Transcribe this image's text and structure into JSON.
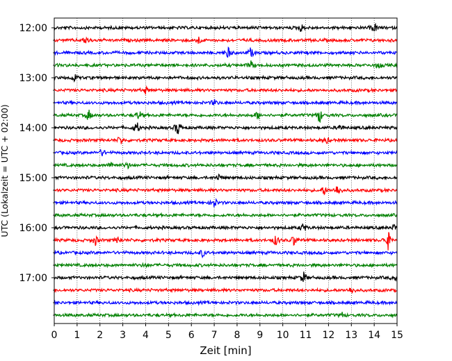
{
  "chart_data": {
    "type": "line",
    "title": "",
    "xlabel": "Zeit  [min]",
    "ylabel": "UTC (Lokalzeit = UTC + 02:00)",
    "x_range": [
      0,
      15
    ],
    "x_ticks": [
      "0",
      "1",
      "2",
      "3",
      "4",
      "5",
      "6",
      "7",
      "8",
      "9",
      "10",
      "11",
      "12",
      "13",
      "14",
      "15"
    ],
    "y_ticks": [
      "12:00",
      "13:00",
      "14:00",
      "15:00",
      "16:00",
      "17:00"
    ],
    "grid": {
      "vertical_dotted": true
    },
    "trace_colors": [
      "#000000",
      "#ff0000",
      "#0000ff",
      "#008000"
    ],
    "traces": [
      {
        "start": "12:00",
        "events": [
          [
            10.8,
            0.5
          ],
          [
            14.0,
            0.6
          ]
        ]
      },
      {
        "start": "12:15",
        "events": [
          [
            1.4,
            0.5
          ],
          [
            6.3,
            0.5
          ]
        ]
      },
      {
        "start": "12:30",
        "events": [
          [
            7.6,
            0.7
          ],
          [
            8.6,
            0.6
          ]
        ]
      },
      {
        "start": "12:45",
        "events": [
          [
            8.6,
            0.5
          ],
          [
            14.2,
            0.5
          ]
        ]
      },
      {
        "start": "13:00",
        "events": [
          [
            0.9,
            0.5
          ]
        ]
      },
      {
        "start": "13:15",
        "events": [
          [
            4.0,
            0.4
          ]
        ]
      },
      {
        "start": "13:30",
        "events": [
          [
            7.0,
            0.4
          ]
        ]
      },
      {
        "start": "13:45",
        "events": [
          [
            1.5,
            0.7
          ],
          [
            3.7,
            0.6
          ],
          [
            8.9,
            0.5
          ],
          [
            11.6,
            1.0
          ]
        ]
      },
      {
        "start": "14:00",
        "events": [
          [
            3.6,
            0.8
          ],
          [
            5.4,
            1.0
          ],
          [
            12.5,
            0.4
          ]
        ]
      },
      {
        "start": "14:15",
        "events": [
          [
            2.9,
            0.6
          ],
          [
            11.9,
            0.4
          ]
        ]
      },
      {
        "start": "14:30",
        "events": [
          [
            2.1,
            0.4
          ]
        ]
      },
      {
        "start": "14:45",
        "events": [
          [
            2.5,
            0.4
          ],
          [
            3.2,
            0.4
          ]
        ]
      },
      {
        "start": "15:00",
        "events": [
          [
            7.2,
            0.4
          ]
        ]
      },
      {
        "start": "15:15",
        "events": [
          [
            11.8,
            0.6
          ],
          [
            12.4,
            0.8
          ]
        ]
      },
      {
        "start": "15:30",
        "events": [
          [
            7.0,
            0.7
          ]
        ]
      },
      {
        "start": "15:45",
        "events": []
      },
      {
        "start": "16:00",
        "events": [
          [
            10.9,
            0.6
          ],
          [
            14.9,
            0.4
          ]
        ]
      },
      {
        "start": "16:15",
        "events": [
          [
            1.8,
            0.6
          ],
          [
            2.8,
            0.4
          ],
          [
            9.7,
            0.7
          ],
          [
            10.5,
            0.7
          ],
          [
            14.6,
            1.2
          ]
        ]
      },
      {
        "start": "16:30",
        "events": [
          [
            6.5,
            0.5
          ]
        ]
      },
      {
        "start": "16:45",
        "events": [
          [
            4.0,
            0.3
          ]
        ]
      },
      {
        "start": "17:00",
        "events": [
          [
            10.9,
            0.7
          ],
          [
            14.9,
            0.4
          ]
        ]
      },
      {
        "start": "17:15",
        "events": [
          [
            13.0,
            0.5
          ]
        ]
      },
      {
        "start": "17:30",
        "events": []
      },
      {
        "start": "17:45",
        "events": [
          [
            12.6,
            0.3
          ]
        ]
      }
    ]
  }
}
